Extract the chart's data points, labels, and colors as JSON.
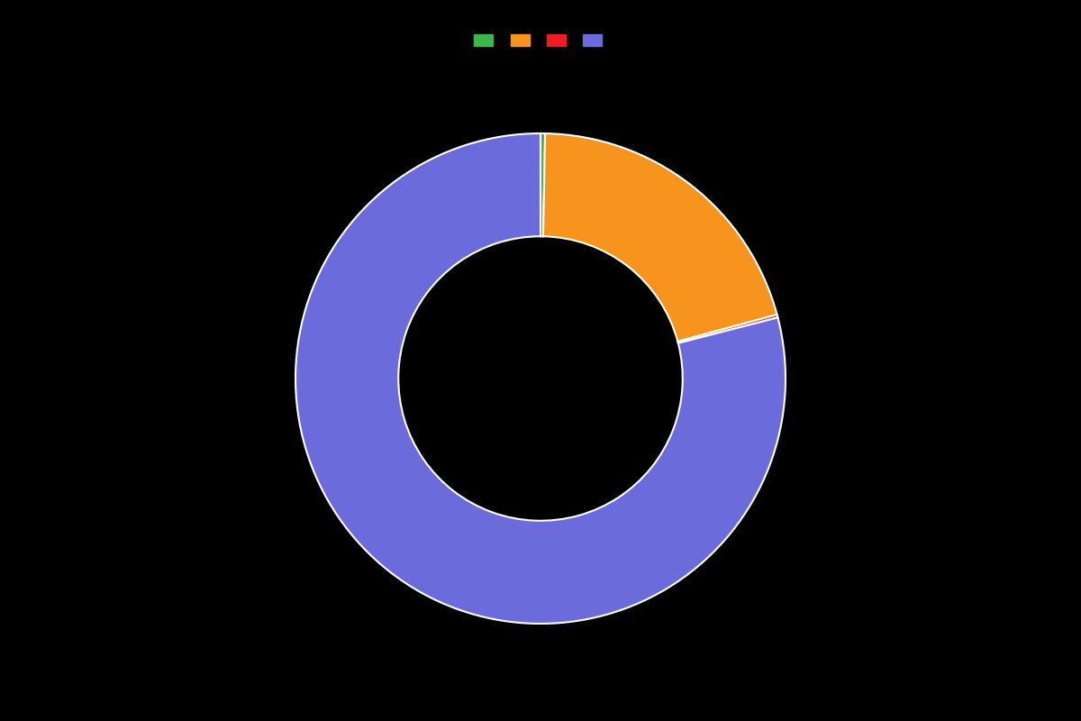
{
  "slices": [
    0.3,
    20.5,
    0.2,
    79.0
  ],
  "colors": [
    "#3cb54a",
    "#f7941d",
    "#ed1c24",
    "#6b6bdb"
  ],
  "legend_labels": [
    "",
    "",
    "",
    ""
  ],
  "background_color": "#000000",
  "wedge_edge_color": "#ffffff",
  "wedge_linewidth": 1.5,
  "donut_width": 0.42,
  "startangle": 90,
  "figsize": [
    12.0,
    8.0
  ],
  "dpi": 100
}
